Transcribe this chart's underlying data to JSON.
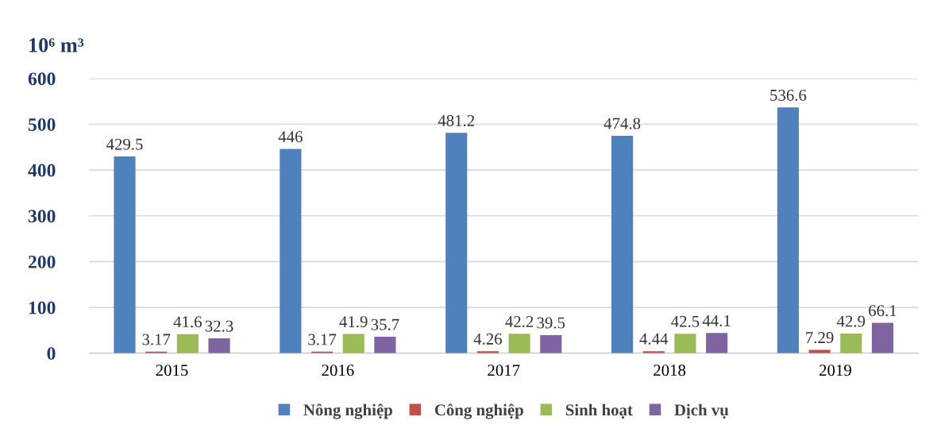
{
  "chart_data": {
    "type": "bar",
    "ylabel": "10⁶ m³",
    "categories": [
      "2015",
      "2016",
      "2017",
      "2018",
      "2019"
    ],
    "series": [
      {
        "name": "Nông nghiệp",
        "color": "#4f81bd",
        "values": [
          429.5,
          446,
          481.2,
          474.8,
          536.6
        ]
      },
      {
        "name": "Công nghiệp",
        "color": "#c0504d",
        "values": [
          3.17,
          3.17,
          4.26,
          4.44,
          7.29
        ]
      },
      {
        "name": "Sinh hoạt",
        "color": "#9bbb59",
        "values": [
          41.6,
          41.9,
          42.2,
          42.5,
          42.9
        ]
      },
      {
        "name": "Dịch vụ",
        "color": "#8064a2",
        "values": [
          32.3,
          35.7,
          39.5,
          44.1,
          66.1
        ]
      }
    ],
    "ylim": [
      0,
      600
    ],
    "yticks": [
      0,
      100,
      200,
      300,
      400,
      500,
      600
    ],
    "grid": "y",
    "legend": "bottom",
    "data_labels": true
  }
}
